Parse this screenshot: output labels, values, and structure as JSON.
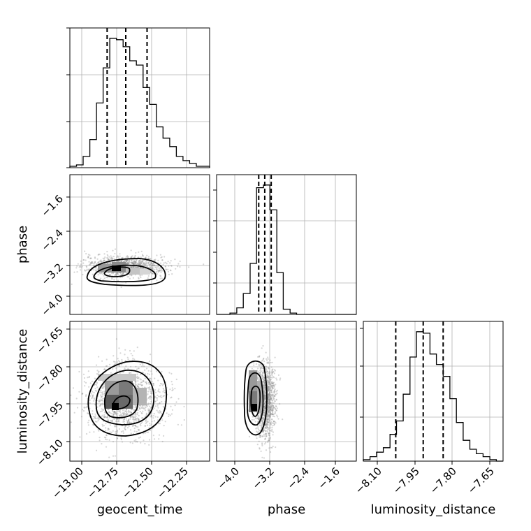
{
  "chart_data": {
    "type": "corner",
    "parameters": [
      "geocent_time",
      "phase",
      "luminosity_distance"
    ],
    "ranges": {
      "geocent_time": [
        -13.2,
        -12.15
      ],
      "phase": [
        -4.4,
        -1.15
      ],
      "luminosity_distance": [
        -8.18,
        -7.62
      ]
    },
    "ticks": {
      "geocent_time": [
        "-13.00",
        "-12.75",
        "-12.50",
        "-12.25"
      ],
      "phase": [
        "-4.0",
        "-3.2",
        "-2.4",
        "-1.6"
      ],
      "luminosity_distance": [
        "-8.10",
        "-7.95",
        "-7.80",
        "-7.65"
      ]
    },
    "tick_values": {
      "geocent_time": [
        -13.0,
        -12.75,
        -12.5,
        -12.25
      ],
      "phase": [
        -4.0,
        -3.2,
        -2.4,
        -1.6
      ],
      "luminosity_distance": [
        -8.1,
        -7.95,
        -7.8,
        -7.65
      ]
    },
    "quantiles": {
      "geocent_time": [
        -12.92,
        -12.78,
        -12.62
      ],
      "phase": [
        -3.42,
        -3.28,
        -3.13
      ],
      "luminosity_distance": [
        -8.05,
        -7.94,
        -7.86
      ]
    },
    "histograms": {
      "geocent_time": {
        "edges": [
          -13.2,
          -13.15,
          -13.1,
          -13.05,
          -13.0,
          -12.95,
          -12.9,
          -12.85,
          -12.8,
          -12.75,
          -12.7,
          -12.65,
          -12.6,
          -12.55,
          -12.5,
          -12.45,
          -12.4,
          -12.35,
          -12.3,
          -12.25,
          -12.2,
          -12.15
        ],
        "counts": [
          1,
          2,
          8,
          20,
          46,
          71,
          92,
          91,
          86,
          76,
          73,
          57,
          45,
          29,
          21,
          15,
          8,
          5,
          3,
          1,
          1
        ]
      },
      "phase": {
        "edges": [
          -4.4,
          -4.24,
          -4.09,
          -3.93,
          -3.78,
          -3.62,
          -3.47,
          -3.31,
          -3.16,
          -3.0,
          -2.85,
          -2.69,
          -2.54,
          -2.38,
          -2.23,
          -2.07,
          -1.92,
          -1.76,
          -1.61,
          -1.45,
          -1.3,
          -1.15
        ],
        "counts": [
          0,
          0,
          1,
          5,
          16,
          39,
          97,
          99,
          80,
          32,
          4,
          1,
          0,
          0,
          0,
          0,
          0,
          0,
          0,
          0,
          0
        ]
      },
      "luminosity_distance": {
        "edges": [
          -8.18,
          -8.153,
          -8.127,
          -8.1,
          -8.073,
          -8.047,
          -8.02,
          -7.993,
          -7.967,
          -7.94,
          -7.913,
          -7.887,
          -7.86,
          -7.833,
          -7.807,
          -7.78,
          -7.753,
          -7.727,
          -7.7,
          -7.673,
          -7.647,
          -7.62
        ],
        "counts": [
          1,
          3,
          6,
          9,
          18,
          27,
          45,
          70,
          87,
          86,
          72,
          65,
          57,
          42,
          26,
          14,
          8,
          5,
          3,
          1,
          0
        ]
      }
    },
    "density_peaks": {
      "geocent_time_phase": [
        -12.88,
        -3.35
      ],
      "geocent_time_luminosity_distance": [
        -12.85,
        -7.97
      ],
      "phase_luminosity_distance": [
        -3.3,
        -7.97
      ]
    },
    "xlabel": [
      "geocent_time",
      "phase",
      "luminosity_distance"
    ],
    "ylabel": [
      "phase",
      "luminosity_distance"
    ]
  }
}
